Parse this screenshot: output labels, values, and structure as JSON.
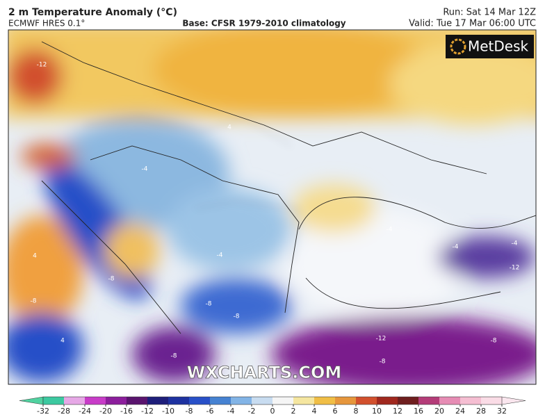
{
  "header": {
    "title": "2 m Temperature Anomaly (°C)",
    "model": "ECMWF HRES 0.1°",
    "base": "Base: CFSR 1979-2010 climatology",
    "run": "Run: Sat 14 Mar 12Z",
    "valid": "Valid: Tue 17 Mar 06:00 UTC"
  },
  "map": {
    "logo": "MetDesk",
    "watermark": "WXCHARTS.COM",
    "contour_labels": [
      -4,
      -4,
      4,
      -4,
      -4,
      -8,
      -8,
      -8,
      -8,
      -12,
      -8,
      -12,
      4,
      -4,
      -8,
      -8,
      4,
      -12
    ],
    "colorbar": {
      "ticks": [
        -32,
        -28,
        -24,
        -20,
        -16,
        -12,
        -10,
        -8,
        -6,
        -4,
        -2,
        0,
        2,
        4,
        6,
        8,
        10,
        12,
        16,
        20,
        24,
        28,
        32
      ],
      "colors": [
        "#3cc9a0",
        "#e6a8e6",
        "#c83cc8",
        "#8c1e9c",
        "#5a146e",
        "#1e1e7a",
        "#1e32a0",
        "#2850c8",
        "#4682d2",
        "#82b4e6",
        "#c8dcf0",
        "#f5f5f5",
        "#f5e6a0",
        "#f0be46",
        "#e6963c",
        "#d2502d",
        "#a0281e",
        "#6e1e1e",
        "#b43c78",
        "#e68cb4",
        "#f5bed2",
        "#fadce6"
      ],
      "under_color": "#50d2a0",
      "over_color": "#fae6ee"
    }
  }
}
